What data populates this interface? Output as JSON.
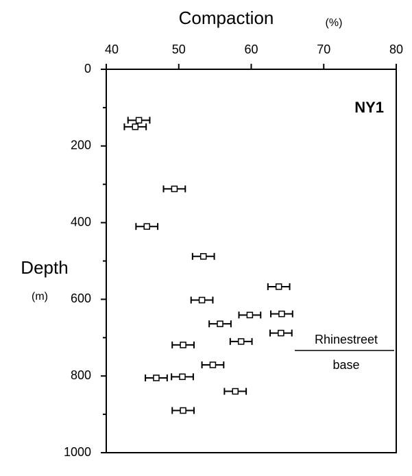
{
  "chart_data": {
    "type": "scatter",
    "x_label": "Compaction",
    "x_unit": "(%)",
    "y_label": "Depth",
    "y_unit": "(m)",
    "annotations": [
      "NY1",
      "Rhinestreet",
      "base"
    ],
    "x": [
      44.5,
      44,
      49.4,
      45.6,
      53.4,
      63.8,
      53.2,
      59.8,
      64.2,
      55.7,
      64.1,
      50.6,
      58.6,
      54.7,
      46.9,
      50.5,
      57.8,
      50.6
    ],
    "values": [
      133,
      150,
      312,
      410,
      488,
      567,
      602,
      641,
      638,
      664,
      688,
      719,
      710,
      771,
      805,
      802,
      840,
      890
    ],
    "xerr": [
      1.5,
      1.5,
      1.5,
      1.5,
      1.5,
      1.5,
      1.5,
      1.5,
      1.5,
      1.5,
      1.5,
      1.5,
      1.5,
      1.5,
      1.5,
      1.5,
      1.5,
      1.5
    ],
    "color": "#000000",
    "xlim": [
      40,
      80
    ],
    "xticks": [
      40,
      50,
      60,
      70,
      80
    ],
    "ylim": [
      0,
      1000
    ],
    "yticks": [
      0,
      200,
      400,
      600,
      800,
      1000
    ],
    "yminor": [
      100,
      300,
      500,
      700,
      900
    ],
    "y_inverted": true
  }
}
